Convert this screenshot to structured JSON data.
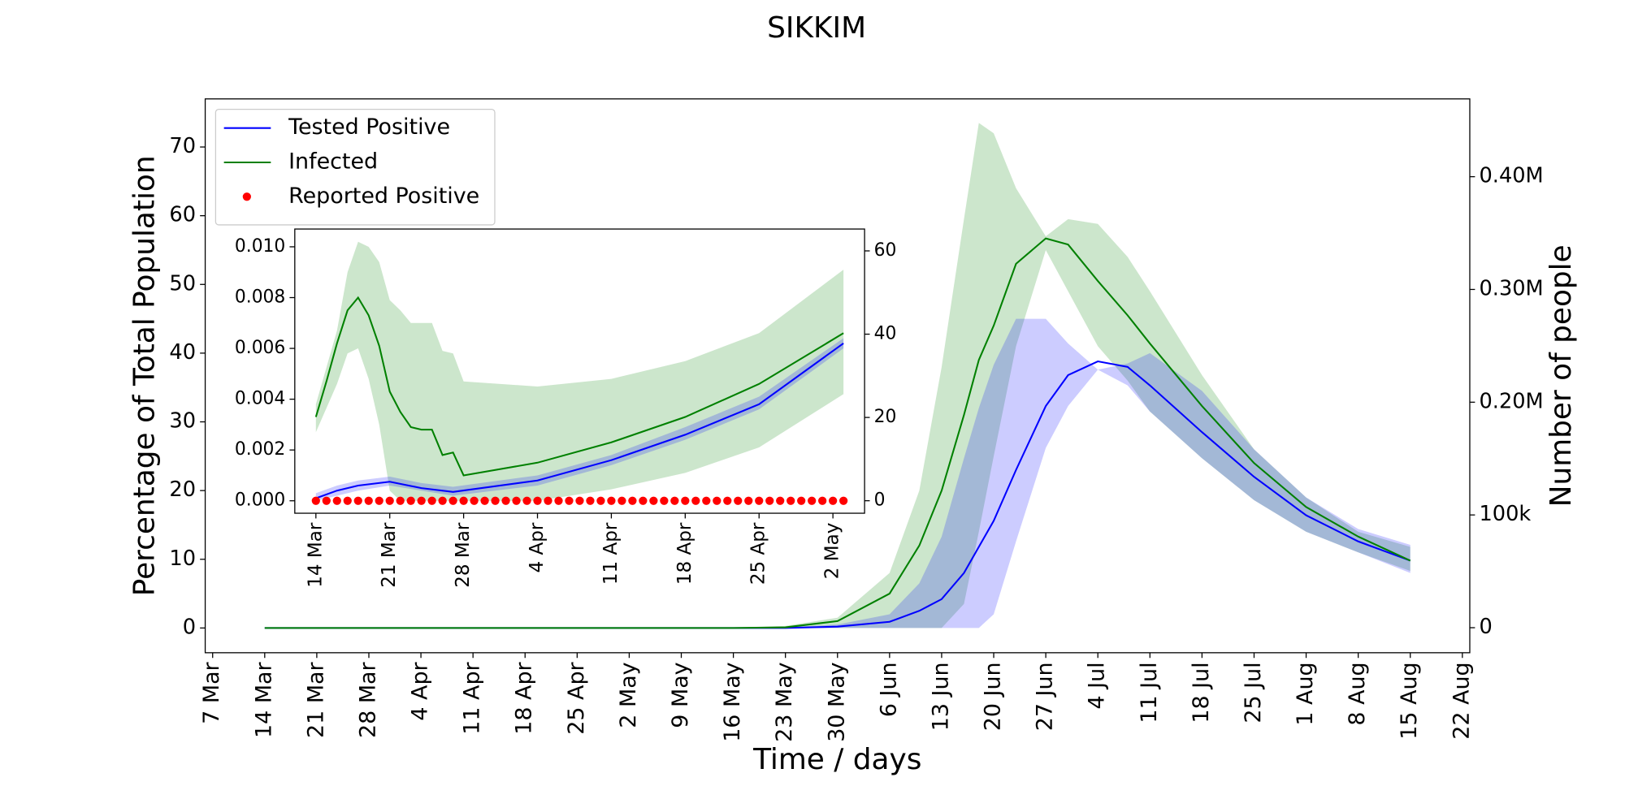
{
  "chart_data": [
    {
      "type": "line",
      "title": "SIKKIM",
      "xlabel": "Time / days",
      "ylabel": "Percentage of Total Population",
      "y2label": "Number of people",
      "x": [
        "14 Mar",
        "16 May",
        "23 May",
        "30 May",
        "6 Jun",
        "10 Jun",
        "13 Jun",
        "16 Jun",
        "18 Jun",
        "20 Jun",
        "23 Jun",
        "27 Jun",
        "30 Jun",
        "4 Jul",
        "8 Jul",
        "11 Jul",
        "18 Jul",
        "25 Jul",
        "1 Aug",
        "8 Aug",
        "15 Aug"
      ],
      "series": [
        {
          "name": "Tested Positive",
          "color": "#0000ff",
          "values": [
            0,
            0,
            0,
            0.2,
            0.9,
            2.5,
            4.2,
            8,
            11.8,
            15.6,
            23,
            32.3,
            36.8,
            38.8,
            38,
            35.3,
            28.5,
            22,
            16.4,
            12.6,
            9.8
          ]
        },
        {
          "name": "Infected",
          "color": "#008000",
          "values": [
            0,
            0,
            0.1,
            1,
            5,
            12,
            20,
            31,
            39,
            44,
            53,
            56.7,
            55.8,
            50.5,
            45.5,
            41.4,
            32.3,
            24,
            17.6,
            13.3,
            9.8
          ]
        }
      ],
      "bands": [
        {
          "color": "#008000",
          "opacity": 0.2,
          "lower": [
            0,
            0,
            0,
            0,
            0,
            0,
            0,
            3.5,
            14,
            25,
            41,
            55,
            49,
            41,
            36,
            31.5,
            24.7,
            18.6,
            14,
            11,
            8.3
          ],
          "upper": [
            0,
            0,
            0.3,
            1.5,
            8,
            20,
            38,
            59.5,
            73.5,
            72,
            64,
            57,
            59.5,
            58.8,
            54,
            49,
            36.8,
            26,
            19,
            14,
            11.8
          ]
        },
        {
          "color": "#0000ff",
          "opacity": 0.2,
          "lower": [
            0,
            0,
            0,
            0,
            0,
            0,
            0,
            0,
            0,
            2,
            12.6,
            26.2,
            32.3,
            37.6,
            35.3,
            31.5,
            24.7,
            18.6,
            14,
            11,
            8
          ],
          "upper": [
            0,
            0,
            0.1,
            0.5,
            2,
            6.5,
            13.3,
            24.7,
            32,
            38.3,
            45,
            45,
            41.4,
            37.6,
            38.5,
            40,
            34.5,
            26,
            19,
            14.4,
            12.1
          ]
        }
      ],
      "xlim": [
        "6 Mar",
        "23 Aug"
      ],
      "xticks": [
        "7 Mar",
        "14 Mar",
        "21 Mar",
        "28 Mar",
        "4 Apr",
        "11 Apr",
        "18 Apr",
        "25 Apr",
        "2 May",
        "9 May",
        "16 May",
        "23 May",
        "30 May",
        "6 Jun",
        "13 Jun",
        "20 Jun",
        "27 Jun",
        "4 Jul",
        "11 Jul",
        "18 Jul",
        "25 Jul",
        "1 Aug",
        "8 Aug",
        "15 Aug",
        "22 Aug"
      ],
      "ylim": [
        -3.6,
        77
      ],
      "yticks": [
        0,
        10,
        20,
        30,
        40,
        50,
        60,
        70
      ],
      "y2lim": [
        -22200,
        469000
      ],
      "y2ticks": [
        0,
        {
          "value": 100000,
          "label": "100k"
        },
        {
          "value": 200000,
          "label": "0.20M"
        },
        {
          "value": 300000,
          "label": "0.30M"
        },
        {
          "value": 400000,
          "label": "0.40M"
        }
      ],
      "legend": "upper left"
    },
    {
      "type": "line",
      "series": [
        {
          "color": "#008000",
          "x": [
            "14 Mar",
            "15 Mar",
            "16 Mar",
            "17 Mar",
            "18 Mar",
            "19 Mar",
            "20 Mar",
            "21 Mar",
            "22 Mar",
            "23 Mar",
            "24 Mar",
            "25 Mar",
            "26 Mar",
            "27 Mar",
            "28 Mar",
            "4 Apr",
            "11 Apr",
            "18 Apr",
            "25 Apr",
            "3 May"
          ],
          "values": [
            0.0033,
            0.0047,
            0.0062,
            0.0075,
            0.008,
            0.0073,
            0.0061,
            0.0043,
            0.0035,
            0.0029,
            0.0028,
            0.0028,
            0.0018,
            0.0019,
            0.001,
            0.0015,
            0.0023,
            0.0033,
            0.0046,
            0.0066
          ]
        },
        {
          "color": "#0000ff",
          "x": [
            "14 Mar",
            "16 Mar",
            "18 Mar",
            "21 Mar",
            "24 Mar",
            "27 Mar",
            "4 Apr",
            "11 Apr",
            "18 Apr",
            "25 Apr",
            "3 May"
          ],
          "values": [
            0.0001,
            0.0004,
            0.0006,
            0.00075,
            0.0005,
            0.00035,
            0.0008,
            0.0016,
            0.0026,
            0.0038,
            0.0062
          ]
        },
        {
          "name": "Reported Positive",
          "type": "scatter",
          "color": "#ff0000",
          "x": [
            "14 Mar",
            "15 Mar",
            "16 Mar",
            "17 Mar",
            "18 Mar",
            "19 Mar",
            "20 Mar",
            "21 Mar",
            "22 Mar",
            "23 Mar",
            "24 Mar",
            "25 Mar",
            "26 Mar",
            "27 Mar",
            "28 Mar",
            "29 Mar",
            "30 Mar",
            "31 Mar",
            "1 Apr",
            "2 Apr",
            "3 Apr",
            "4 Apr",
            "5 Apr",
            "6 Apr",
            "7 Apr",
            "8 Apr",
            "9 Apr",
            "10 Apr",
            "11 Apr",
            "12 Apr",
            "13 Apr",
            "14 Apr",
            "15 Apr",
            "16 Apr",
            "17 Apr",
            "18 Apr",
            "19 Apr",
            "20 Apr",
            "21 Apr",
            "22 Apr",
            "23 Apr",
            "24 Apr",
            "25 Apr",
            "26 Apr",
            "27 Apr",
            "28 Apr",
            "29 Apr",
            "30 Apr",
            "1 May",
            "2 May",
            "3 May"
          ],
          "values": [
            0,
            0,
            0,
            0,
            0,
            0,
            0,
            0,
            0,
            0,
            0,
            0,
            0,
            0,
            0,
            0,
            0,
            0,
            0,
            0,
            0,
            0,
            0,
            0,
            0,
            0,
            0,
            0,
            0,
            0,
            0,
            0,
            0,
            0,
            0,
            0,
            0,
            0,
            0,
            0,
            0,
            0,
            0,
            0,
            0,
            0,
            0,
            0,
            0,
            0,
            0
          ]
        }
      ],
      "bands": [
        {
          "color": "#008000",
          "opacity": 0.2,
          "x": [
            "14 Mar",
            "16 Mar",
            "17 Mar",
            "18 Mar",
            "19 Mar",
            "20 Mar",
            "21 Mar",
            "22 Mar",
            "23 Mar",
            "25 Mar",
            "26 Mar",
            "27 Mar",
            "28 Mar",
            "4 Apr",
            "11 Apr",
            "18 Apr",
            "25 Apr",
            "3 May"
          ],
          "lower": [
            0.0027,
            0.0046,
            0.0058,
            0.006,
            0.0048,
            0.003,
            0.0004,
            0,
            0,
            0,
            0,
            0,
            0,
            0,
            0.00045,
            0.0011,
            0.0021,
            0.0042
          ],
          "upper": [
            0.0038,
            0.0067,
            0.009,
            0.0102,
            0.01,
            0.0094,
            0.0079,
            0.0075,
            0.007,
            0.007,
            0.0059,
            0.0058,
            0.0047,
            0.0045,
            0.0048,
            0.0055,
            0.0066,
            0.0091
          ]
        },
        {
          "color": "#0000ff",
          "opacity": 0.2,
          "x": [
            "14 Mar",
            "16 Mar",
            "18 Mar",
            "21 Mar",
            "24 Mar",
            "27 Mar",
            "4 Apr",
            "11 Apr",
            "18 Apr",
            "25 Apr",
            "3 May"
          ],
          "lower": [
            0,
            0.0002,
            0.0004,
            0.0006,
            0.0004,
            0.0002,
            0.0006,
            0.0014,
            0.0024,
            0.0036,
            0.006
          ],
          "upper": [
            0.0003,
            0.0006,
            0.0008,
            0.00095,
            0.0007,
            0.00055,
            0.001,
            0.0018,
            0.0029,
            0.0041,
            0.0064
          ]
        }
      ],
      "xlim": [
        "12 Mar",
        "5 May"
      ],
      "xticks": [
        "14 Mar",
        "21 Mar",
        "28 Mar",
        "4 Apr",
        "11 Apr",
        "18 Apr",
        "25 Apr",
        "2 May"
      ],
      "ylim": [
        -0.00049,
        0.0107
      ],
      "yticks": [
        {
          "value": 0,
          "label": "0.000"
        },
        {
          "value": 0.002,
          "label": "0.002"
        },
        {
          "value": 0.004,
          "label": "0.004"
        },
        {
          "value": 0.006,
          "label": "0.006"
        },
        {
          "value": 0.008,
          "label": "0.008"
        },
        {
          "value": 0.01,
          "label": "0.010"
        }
      ],
      "y2lim": [
        -3,
        65.25
      ],
      "y2ticks": [
        0,
        20,
        40,
        60
      ]
    }
  ]
}
